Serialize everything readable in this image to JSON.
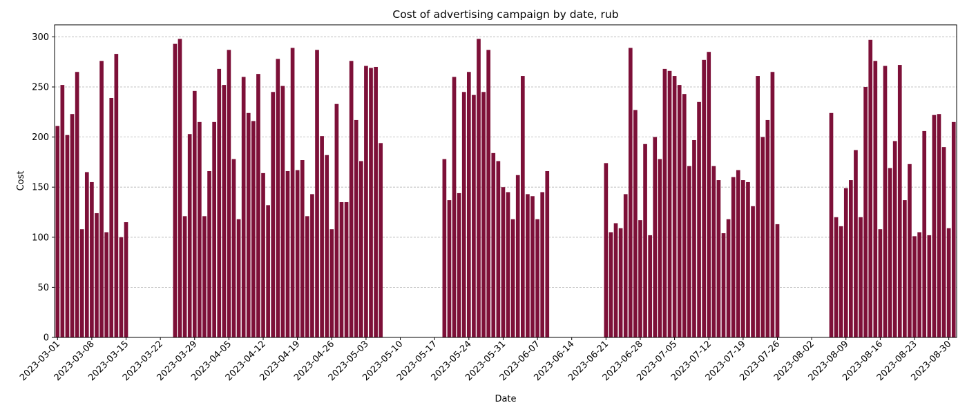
{
  "chart_data": {
    "type": "bar",
    "title": "Cost of advertising campaign by date, rub",
    "xlabel": "Date",
    "ylabel": "Cost",
    "ylim": [
      0,
      312
    ],
    "yticks": [
      0,
      50,
      100,
      150,
      200,
      250,
      300
    ],
    "grid": "y-dashed",
    "bar_color": "#7d1038",
    "x_start": "2023-03-01",
    "x_end": "2023-08-31",
    "xticks": [
      "2023-03-01",
      "2023-03-08",
      "2023-03-15",
      "2023-03-22",
      "2023-03-29",
      "2023-04-05",
      "2023-04-12",
      "2023-04-19",
      "2023-04-26",
      "2023-05-03",
      "2023-05-10",
      "2023-05-17",
      "2023-05-24",
      "2023-05-31",
      "2023-06-07",
      "2023-06-14",
      "2023-06-21",
      "2023-06-28",
      "2023-07-05",
      "2023-07-12",
      "2023-07-19",
      "2023-07-26",
      "2023-08-02",
      "2023-08-09",
      "2023-08-16",
      "2023-08-23",
      "2023-08-30"
    ],
    "series": [
      {
        "points": [
          [
            "2023-03-01",
            211
          ],
          [
            "2023-03-02",
            252
          ],
          [
            "2023-03-03",
            202
          ],
          [
            "2023-03-04",
            223
          ],
          [
            "2023-03-05",
            265
          ],
          [
            "2023-03-06",
            108
          ],
          [
            "2023-03-07",
            165
          ],
          [
            "2023-03-08",
            155
          ],
          [
            "2023-03-09",
            124
          ],
          [
            "2023-03-10",
            276
          ],
          [
            "2023-03-11",
            105
          ],
          [
            "2023-03-12",
            239
          ],
          [
            "2023-03-13",
            283
          ],
          [
            "2023-03-14",
            100
          ],
          [
            "2023-03-15",
            115
          ],
          [
            "2023-03-25",
            293
          ],
          [
            "2023-03-26",
            298
          ],
          [
            "2023-03-27",
            121
          ],
          [
            "2023-03-28",
            203
          ],
          [
            "2023-03-29",
            246
          ],
          [
            "2023-03-30",
            215
          ],
          [
            "2023-03-31",
            121
          ],
          [
            "2023-04-01",
            166
          ],
          [
            "2023-04-02",
            215
          ],
          [
            "2023-04-03",
            268
          ],
          [
            "2023-04-04",
            252
          ],
          [
            "2023-04-05",
            287
          ],
          [
            "2023-04-06",
            178
          ],
          [
            "2023-04-07",
            118
          ],
          [
            "2023-04-08",
            260
          ],
          [
            "2023-04-09",
            224
          ],
          [
            "2023-04-10",
            216
          ],
          [
            "2023-04-11",
            263
          ],
          [
            "2023-04-12",
            164
          ],
          [
            "2023-04-13",
            132
          ],
          [
            "2023-04-14",
            245
          ],
          [
            "2023-04-15",
            278
          ],
          [
            "2023-04-16",
            251
          ],
          [
            "2023-04-17",
            166
          ],
          [
            "2023-04-18",
            289
          ],
          [
            "2023-04-19",
            167
          ],
          [
            "2023-04-20",
            177
          ],
          [
            "2023-04-21",
            121
          ],
          [
            "2023-04-22",
            143
          ],
          [
            "2023-04-23",
            287
          ],
          [
            "2023-04-24",
            201
          ],
          [
            "2023-04-25",
            182
          ],
          [
            "2023-04-26",
            108
          ],
          [
            "2023-04-27",
            233
          ],
          [
            "2023-04-28",
            135
          ],
          [
            "2023-04-29",
            135
          ],
          [
            "2023-04-30",
            276
          ],
          [
            "2023-05-01",
            217
          ],
          [
            "2023-05-02",
            176
          ],
          [
            "2023-05-03",
            271
          ],
          [
            "2023-05-04",
            269
          ],
          [
            "2023-05-05",
            270
          ],
          [
            "2023-05-06",
            194
          ],
          [
            "2023-05-19",
            178
          ],
          [
            "2023-05-20",
            137
          ],
          [
            "2023-05-21",
            260
          ],
          [
            "2023-05-22",
            144
          ],
          [
            "2023-05-23",
            245
          ],
          [
            "2023-05-24",
            265
          ],
          [
            "2023-05-25",
            242
          ],
          [
            "2023-05-26",
            298
          ],
          [
            "2023-05-27",
            245
          ],
          [
            "2023-05-28",
            287
          ],
          [
            "2023-05-29",
            184
          ],
          [
            "2023-05-30",
            176
          ],
          [
            "2023-05-31",
            150
          ],
          [
            "2023-06-01",
            145
          ],
          [
            "2023-06-02",
            118
          ],
          [
            "2023-06-03",
            162
          ],
          [
            "2023-06-04",
            261
          ],
          [
            "2023-06-05",
            143
          ],
          [
            "2023-06-06",
            141
          ],
          [
            "2023-06-07",
            118
          ],
          [
            "2023-06-08",
            145
          ],
          [
            "2023-06-09",
            166
          ],
          [
            "2023-06-21",
            174
          ],
          [
            "2023-06-22",
            105
          ],
          [
            "2023-06-23",
            114
          ],
          [
            "2023-06-24",
            109
          ],
          [
            "2023-06-25",
            143
          ],
          [
            "2023-06-26",
            289
          ],
          [
            "2023-06-27",
            227
          ],
          [
            "2023-06-28",
            117
          ],
          [
            "2023-06-29",
            193
          ],
          [
            "2023-06-30",
            102
          ],
          [
            "2023-07-01",
            200
          ],
          [
            "2023-07-02",
            178
          ],
          [
            "2023-07-03",
            268
          ],
          [
            "2023-07-04",
            266
          ],
          [
            "2023-07-05",
            261
          ],
          [
            "2023-07-06",
            252
          ],
          [
            "2023-07-07",
            243
          ],
          [
            "2023-07-08",
            171
          ],
          [
            "2023-07-09",
            197
          ],
          [
            "2023-07-10",
            235
          ],
          [
            "2023-07-11",
            277
          ],
          [
            "2023-07-12",
            285
          ],
          [
            "2023-07-13",
            171
          ],
          [
            "2023-07-14",
            157
          ],
          [
            "2023-07-15",
            104
          ],
          [
            "2023-07-16",
            118
          ],
          [
            "2023-07-17",
            160
          ],
          [
            "2023-07-18",
            167
          ],
          [
            "2023-07-19",
            157
          ],
          [
            "2023-07-20",
            155
          ],
          [
            "2023-07-21",
            131
          ],
          [
            "2023-07-22",
            261
          ],
          [
            "2023-07-23",
            200
          ],
          [
            "2023-07-24",
            217
          ],
          [
            "2023-07-25",
            265
          ],
          [
            "2023-07-26",
            113
          ],
          [
            "2023-08-06",
            224
          ],
          [
            "2023-08-07",
            120
          ],
          [
            "2023-08-08",
            111
          ],
          [
            "2023-08-09",
            149
          ],
          [
            "2023-08-10",
            157
          ],
          [
            "2023-08-11",
            187
          ],
          [
            "2023-08-12",
            120
          ],
          [
            "2023-08-13",
            250
          ],
          [
            "2023-08-14",
            297
          ],
          [
            "2023-08-15",
            276
          ],
          [
            "2023-08-16",
            108
          ],
          [
            "2023-08-17",
            271
          ],
          [
            "2023-08-18",
            169
          ],
          [
            "2023-08-19",
            196
          ],
          [
            "2023-08-20",
            272
          ],
          [
            "2023-08-21",
            137
          ],
          [
            "2023-08-22",
            173
          ],
          [
            "2023-08-23",
            101
          ],
          [
            "2023-08-24",
            105
          ],
          [
            "2023-08-25",
            206
          ],
          [
            "2023-08-26",
            102
          ],
          [
            "2023-08-27",
            222
          ],
          [
            "2023-08-28",
            223
          ],
          [
            "2023-08-29",
            190
          ],
          [
            "2023-08-30",
            109
          ],
          [
            "2023-08-31",
            215
          ]
        ]
      }
    ]
  }
}
